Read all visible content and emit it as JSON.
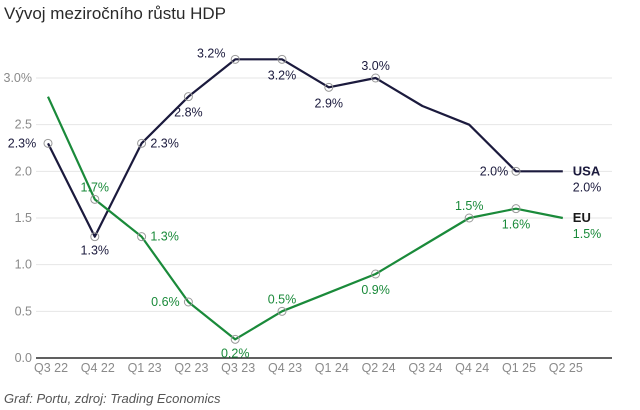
{
  "chart_data": {
    "type": "line",
    "title": "Vývoj meziročního růstu HDP",
    "caption": "Graf: Portu, zdroj: Trading Economics",
    "xlabel": "",
    "ylabel": "",
    "categories": [
      "Q3 22",
      "Q4 22",
      "Q1 23",
      "Q2 23",
      "Q3 23",
      "Q4 23",
      "Q1 24",
      "Q2 24",
      "Q3 24",
      "Q4 24",
      "Q1 25",
      "Q2 25"
    ],
    "yticks": [
      "0.0",
      "0.5",
      "1.0",
      "1.5",
      "2.0",
      "2.5",
      "3.0%"
    ],
    "ylim": [
      0,
      3.0
    ],
    "grid": true,
    "series": [
      {
        "name": "USA",
        "color": "#1b1a3d",
        "values": [
          2.3,
          1.3,
          2.3,
          2.8,
          3.2,
          3.2,
          2.9,
          3.0,
          2.7,
          2.5,
          2.0,
          2.0
        ],
        "labels": [
          "2.3%",
          "1.3%",
          "2.3%",
          "2.8%",
          "3.2%",
          "3.2%",
          "2.9%",
          "3.0%",
          "",
          "",
          "2.0%",
          ""
        ],
        "end_label": "2.0%"
      },
      {
        "name": "EU",
        "color": "#1a8a3a",
        "values": [
          2.8,
          1.7,
          1.3,
          0.6,
          0.2,
          0.5,
          0.7,
          0.9,
          1.2,
          1.5,
          1.6,
          1.5
        ],
        "labels": [
          "",
          "1.7%",
          "1.3%",
          "0.6%",
          "0.2%",
          "0.5%",
          "",
          "0.9%",
          "",
          "1.5%",
          "1.6%",
          ""
        ],
        "end_label": "1.5%"
      }
    ]
  }
}
